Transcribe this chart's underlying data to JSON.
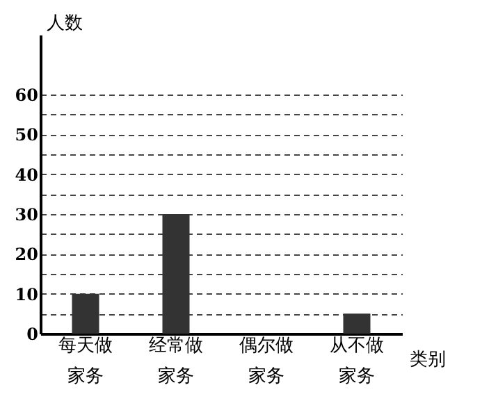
{
  "chart_data": {
    "type": "bar",
    "categories": [
      "每天做家务",
      "经常做家务",
      "偶尔做家务",
      "从不做家务"
    ],
    "values": [
      10,
      30,
      null,
      5
    ],
    "color": "#333333",
    "ylabel": "人数",
    "xlabel": "类别",
    "ylim": [
      0,
      75
    ],
    "yticks": [
      0,
      {
        "value": 5,
        "label": null
      },
      10,
      {
        "value": 15,
        "label": null
      },
      20,
      {
        "value": 25,
        "label": null
      },
      30,
      {
        "value": 35,
        "label": null
      },
      40,
      {
        "value": 45,
        "label": null
      },
      50,
      {
        "value": 55,
        "label": null
      },
      60
    ],
    "grid": "y"
  }
}
